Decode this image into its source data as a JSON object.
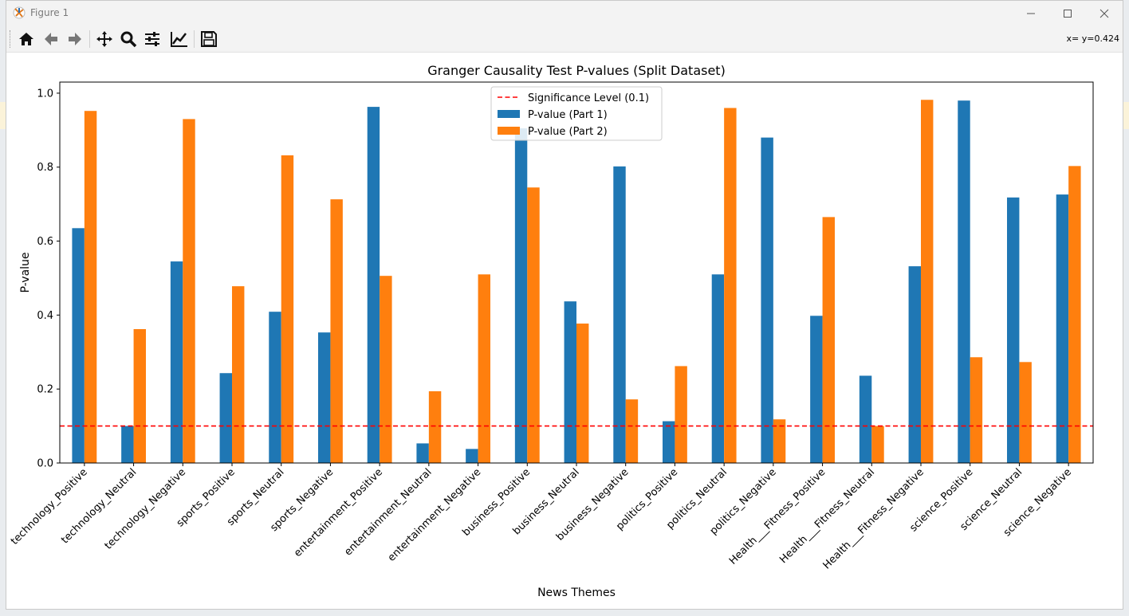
{
  "window": {
    "title": "Figure 1",
    "coords_text": "x= y=0.424"
  },
  "toolbar": {
    "buttons": [
      {
        "name": "home-icon"
      },
      {
        "name": "back-icon"
      },
      {
        "name": "forward-icon"
      },
      {
        "name": "pan-icon"
      },
      {
        "name": "zoom-icon"
      },
      {
        "name": "subplots-icon"
      },
      {
        "name": "edit-axis-icon"
      },
      {
        "name": "save-icon"
      }
    ]
  },
  "chart_data": {
    "type": "bar",
    "title": "Granger Causality Test P-values (Split Dataset)",
    "xlabel": "News Themes",
    "ylabel": "P-value",
    "ylim": [
      0,
      1.03
    ],
    "yticks": [
      "0.0",
      "0.2",
      "0.4",
      "0.6",
      "0.8",
      "1.0"
    ],
    "categories": [
      "technology_Positive",
      "technology_Neutral",
      "technology_Negative",
      "sports_Positive",
      "sports_Neutral",
      "sports_Negative",
      "entertainment_Positive",
      "entertainment_Neutral",
      "entertainment_Negative",
      "business_Positive",
      "business_Neutral",
      "business_Negative",
      "politics_Positive",
      "politics_Neutral",
      "politics_Negative",
      "Health___Fitness_Positive",
      "Health___Fitness_Neutral",
      "Health___Fitness_Negative",
      "science_Positive",
      "science_Neutral",
      "science_Negative"
    ],
    "series": [
      {
        "name": "P-value (Part 1)",
        "color": "#1f77b4",
        "values": [
          0.635,
          0.1,
          0.545,
          0.243,
          0.409,
          0.353,
          0.963,
          0.053,
          0.038,
          0.905,
          0.437,
          0.802,
          0.113,
          0.51,
          0.88,
          0.398,
          0.236,
          0.532,
          0.98,
          0.718,
          0.726
        ]
      },
      {
        "name": "P-value (Part 2)",
        "color": "#ff7f0e",
        "values": [
          0.952,
          0.362,
          0.93,
          0.478,
          0.832,
          0.713,
          0.506,
          0.194,
          0.51,
          0.745,
          0.377,
          0.172,
          0.262,
          0.96,
          0.118,
          0.665,
          0.1,
          0.982,
          0.286,
          0.273,
          0.803
        ]
      }
    ],
    "threshold": {
      "name": "Significance Level (0.1)",
      "value": 0.1,
      "color": "#ff0000"
    },
    "legend_position": "top-center"
  }
}
